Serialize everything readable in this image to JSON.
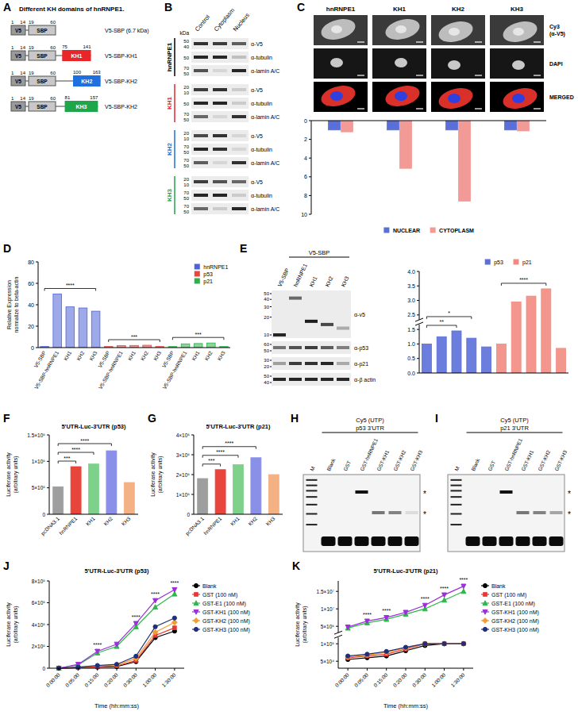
{
  "figure": {
    "A": {
      "letter": "A",
      "title": "Different KH domains of hnRNPE1.",
      "tags": [
        "V5",
        "SBP"
      ],
      "tag_numbers": [
        1,
        14,
        19,
        60
      ],
      "constructs": [
        {
          "label": "V5-SBP (6.7 kDa)"
        },
        {
          "label": "V5-SBP-KH1",
          "domain": "KH1",
          "start": 75,
          "end": 141,
          "color": "#e8262a"
        },
        {
          "label": "V5-SBP-KH2",
          "domain": "KH2",
          "start": 100,
          "end": 163,
          "color": "#1e6fe0"
        },
        {
          "label": "V5-SBP-KH2",
          "domain": "KH3",
          "start": 81,
          "end": 157,
          "color": "#1fa64a"
        }
      ]
    },
    "B": {
      "letter": "B",
      "kda": "kDa",
      "lanes": [
        "Control",
        "Cytoplasm",
        "Nucleus"
      ],
      "groups": [
        {
          "name": "hnRNPE1",
          "color": "#000000",
          "rows": [
            {
              "antibody": "α-V5",
              "markers": [
                50,
                40
              ],
              "bands": [
                0.85,
                0.8,
                0.65
              ]
            },
            {
              "antibody": "α-tubulin",
              "markers": [
                50
              ],
              "bands": [
                0.9,
                0.9,
                0.2
              ]
            },
            {
              "antibody": "α-lamin A/C",
              "markers": [
                70,
                50
              ],
              "bands": [
                0.7,
                0.1,
                0.9
              ]
            }
          ]
        },
        {
          "name": "KH1",
          "color": "#e8262a",
          "rows": [
            {
              "antibody": "α-V5",
              "markers": [
                20,
                10
              ],
              "bands": [
                0.8,
                0.85,
                0.15
              ]
            },
            {
              "antibody": "α-tubulin",
              "markers": [
                50
              ],
              "bands": [
                0.9,
                0.9,
                0.15
              ]
            },
            {
              "antibody": "α-lamin A/C",
              "markers": [
                70,
                50
              ],
              "bands": [
                0.6,
                0.1,
                0.85
              ]
            }
          ]
        },
        {
          "name": "KH2",
          "color": "#1e6fe0",
          "rows": [
            {
              "antibody": "α-V5",
              "markers": [
                20,
                10
              ],
              "bands": [
                0.75,
                0.85,
                0.1
              ]
            },
            {
              "antibody": "α-tubulin",
              "markers": [
                70,
                50
              ],
              "bands": [
                0.9,
                0.85,
                0.1
              ]
            },
            {
              "antibody": "α-lamin A/C",
              "markers": [
                70,
                50
              ],
              "bands": [
                0.65,
                0.1,
                0.85
              ]
            }
          ]
        },
        {
          "name": "KH3",
          "color": "#1fa64a",
          "rows": [
            {
              "antibody": "α-V5",
              "markers": [
                20,
                10
              ],
              "bands": [
                0.8,
                0.7,
                0.6
              ]
            },
            {
              "antibody": "α-tubulin",
              "markers": [
                70,
                50
              ],
              "bands": [
                0.9,
                0.9,
                0.15
              ]
            },
            {
              "antibody": "α-lamin A/C",
              "markers": [
                70,
                50
              ],
              "bands": [
                0.6,
                0.15,
                0.9
              ]
            }
          ]
        }
      ]
    },
    "C": {
      "letter": "C",
      "rows": [
        "Cy3 (α-V5)",
        "DAPI",
        "MERGED"
      ]
    },
    "D": {
      "letter": "D"
    },
    "E": {
      "letter": "E",
      "header": "V5-SBP",
      "lanes": [
        "V5-SBP",
        "hnRNPE1",
        "KH1",
        "KH2",
        "KH3"
      ],
      "rows": [
        {
          "antibody": "α-v5",
          "markers": [
            50,
            40,
            30,
            20,
            10
          ],
          "bands": [
            0.9,
            0.6,
            0.95,
            0.75,
            0.3
          ],
          "band_kda": [
            10,
            42,
            17,
            15,
            13
          ]
        },
        {
          "antibody": "α-p53",
          "markers": [
            60,
            50
          ],
          "bands": [
            0.55,
            0.7,
            0.8,
            0.65,
            0.5
          ]
        },
        {
          "antibody": "α-p21",
          "markers": [
            30,
            20
          ],
          "bands": [
            0.35,
            0.8,
            0.85,
            0.9,
            0.3
          ]
        },
        {
          "antibody": "α-β actin",
          "markers": [
            50,
            40
          ],
          "bands": [
            0.9,
            0.9,
            0.9,
            0.9,
            0.9
          ]
        }
      ]
    },
    "F": {
      "letter": "F"
    },
    "G": {
      "letter": "G"
    },
    "H": {
      "letter": "H",
      "label": "Cy5 (UTP)",
      "probe": "p53 3'UTR",
      "lanes": [
        "M",
        "Blank",
        "GST",
        "GST-hnRNPE1",
        "GST-KH1",
        "GST-KH2",
        "GST-KH3"
      ],
      "marks": [
        "*",
        "*"
      ],
      "upper_band": [
        0,
        0,
        0,
        1,
        0,
        0,
        0
      ],
      "lower_band": [
        0,
        0,
        0,
        0,
        0.55,
        0.5,
        0.1
      ],
      "free_probe": [
        0,
        1,
        1,
        1,
        1,
        1,
        1
      ]
    },
    "I": {
      "letter": "I",
      "label": "Cy5 (UTP)",
      "probe": "p21 3'UTR",
      "lanes": [
        "M",
        "Blank",
        "GST",
        "GST-hnRNPE1",
        "GST-KH1",
        "GST-KH2",
        "GST-KH3"
      ],
      "marks": [
        "*",
        "*"
      ],
      "upper_band": [
        0,
        0,
        0,
        1,
        0,
        0,
        0
      ],
      "lower_band": [
        0,
        0,
        0,
        0,
        0.55,
        0.5,
        0.35
      ],
      "free_probe": [
        0,
        1,
        1,
        1,
        1,
        1,
        1
      ]
    },
    "J": {
      "letter": "J"
    },
    "K": {
      "letter": "K"
    }
  },
  "chart_data": [
    {
      "type": "bar",
      "categories": [
        "hnRNPE1",
        "KH1",
        "KH2",
        "KH3"
      ],
      "series": [
        {
          "name": "NUCLEAR",
          "color": "#5b6fd9",
          "values": [
            1,
            1,
            1,
            1
          ]
        },
        {
          "name": "CYTOPLASM",
          "color": "#f29b96",
          "values": [
            1.2,
            5.1,
            8.6,
            1.1
          ]
        }
      ],
      "ylim": [
        10,
        0
      ],
      "yticks": [
        0,
        2,
        4,
        6,
        8,
        10
      ],
      "legend": "bottom"
    },
    {
      "type": "bar",
      "ylabel": "Relative Expression normalize to beta-actin",
      "categories": [
        "V5-SBP",
        "V5-SBP-hnRNPE1",
        "KH1",
        "KH2",
        "KH3",
        "V5-SBP",
        "V5-SBP-hnRNPE1",
        "KH1",
        "KH2",
        "KH3",
        "V5-SBP",
        "V5-SBP-hnRNPE1",
        "KH1",
        "KH2",
        "KH3"
      ],
      "series": [
        {
          "name": "hnRNPE1",
          "color": "#4f63d8",
          "values": [
            1,
            50,
            38,
            37,
            34,
            null,
            null,
            null,
            null,
            null,
            null,
            null,
            null,
            null,
            null
          ]
        },
        {
          "name": "p53",
          "color": "#e8453c",
          "values": [
            null,
            null,
            null,
            null,
            null,
            1,
            1.8,
            2.0,
            2.2,
            1.0,
            null,
            null,
            null,
            null,
            null
          ]
        },
        {
          "name": "p21",
          "color": "#2bb04a",
          "values": [
            null,
            null,
            null,
            null,
            null,
            null,
            null,
            null,
            null,
            null,
            1,
            3.5,
            3.8,
            4.3,
            1.0
          ]
        }
      ],
      "ylim": [
        0,
        80
      ],
      "yticks": [
        0,
        20,
        40,
        60,
        80
      ],
      "legend": "top-right",
      "annotations": [
        {
          "from": 0,
          "to": 4,
          "text": "****"
        },
        {
          "from": 5,
          "to": 9,
          "text": "***"
        },
        {
          "from": 10,
          "to": 14,
          "text": "***"
        }
      ]
    },
    {
      "type": "bar",
      "categories": [
        null,
        null,
        null,
        null,
        null,
        null,
        null,
        null,
        null,
        null
      ],
      "series": [
        {
          "name": "p53",
          "color": "#5b6fd9",
          "values": [
            1.0,
            1.25,
            1.45,
            1.2,
            0.9,
            null,
            null,
            null,
            null,
            null
          ]
        },
        {
          "name": "p21",
          "color": "#f28b82",
          "values": [
            null,
            null,
            null,
            null,
            null,
            1.0,
            2.95,
            3.15,
            3.4,
            0.85
          ]
        }
      ],
      "ylim": [
        0,
        4
      ],
      "yticks": [
        {
          "value": 0,
          "label": "0.0"
        },
        {
          "value": 0.5,
          "label": "0.5"
        },
        {
          "value": 1,
          "label": "1.0"
        },
        {
          "value": 1.5,
          "label": "1.5"
        },
        {
          "value": 2.5,
          "label": "2.5"
        },
        {
          "value": 3,
          "label": "3.0"
        },
        {
          "value": 3.5,
          "label": "3.5"
        },
        {
          "value": 4,
          "label": "4.0"
        }
      ],
      "legend": "top",
      "annotations": [
        {
          "from": 0,
          "to": 2,
          "text": "**"
        },
        {
          "from": 0,
          "to": 3,
          "text": "*"
        },
        {
          "from": 5,
          "to": 8,
          "text": "****"
        }
      ]
    },
    {
      "type": "bar",
      "title": "5'UTR-Luc-3'UTR (p53)",
      "ylabel": "Luciferase activity (arbitrary units)",
      "categories": [
        "pcDNA3.1",
        "hnRNPE1",
        "KH1",
        "KH2",
        "KH3"
      ],
      "values": [
        520000,
        900000,
        950000,
        1200000,
        600000
      ],
      "colors": [
        "#9e9e9e",
        "#e8453c",
        "#7ed18a",
        "#8a8fe8",
        "#f4b183"
      ],
      "ylim": [
        0,
        1500000
      ],
      "yticks": [
        0,
        {
          "value": 500000,
          "label": "5×10⁵"
        },
        {
          "value": 1000000,
          "label": "1×10⁶"
        },
        {
          "value": 1500000,
          "label": "1.5×10⁶"
        }
      ],
      "annotations": [
        {
          "from": 0,
          "to": 1,
          "text": "***"
        },
        {
          "from": 0,
          "to": 2,
          "text": "****"
        },
        {
          "from": 0,
          "to": 3,
          "text": "****"
        }
      ]
    },
    {
      "type": "bar",
      "title": "5'UTR-Luc-3'UTR (p21)",
      "ylabel": "Luciferase activity (arbitrary units)",
      "categories": [
        "pcDNA3.1",
        "hnRNPE1",
        "KH1",
        "KH2",
        "KH3"
      ],
      "values": [
        1800000,
        2250000,
        2500000,
        2850000,
        2000000
      ],
      "colors": [
        "#9e9e9e",
        "#e8453c",
        "#7ed18a",
        "#8a8fe8",
        "#f4b183"
      ],
      "ylim": [
        0,
        4000000
      ],
      "yticks": [
        0,
        {
          "value": 1000000,
          "label": "1×10⁶"
        },
        {
          "value": 2000000,
          "label": "2×10⁶"
        },
        {
          "value": 3000000,
          "label": "3×10⁶"
        },
        {
          "value": 4000000,
          "label": "4×10⁶"
        }
      ],
      "annotations": [
        {
          "from": 0,
          "to": 1,
          "text": "***"
        },
        {
          "from": 0,
          "to": 2,
          "text": "****"
        },
        {
          "from": 0,
          "to": 3,
          "text": "****"
        }
      ]
    },
    {
      "type": "line",
      "title": "5'UTR-Luc-3'UTR (p53)",
      "ylabel": "Luciferase activity (arbitrary units)",
      "xlabel": "Time (hh:mm:ss)",
      "categories": [
        "0:00:00",
        "0:05:00",
        "0:15:00",
        "0:20:00",
        "0:30:00",
        "1:00:00",
        "1:30:00"
      ],
      "series": [
        {
          "name": "Blank",
          "color": "#000000",
          "marker": "circle",
          "values": [
            0,
            5000,
            10000,
            15000,
            60000,
            280000,
            340000
          ]
        },
        {
          "name": "GST (100 nM)",
          "color": "#e53935",
          "marker": "square",
          "values": [
            0,
            5000,
            12000,
            20000,
            70000,
            300000,
            370000
          ]
        },
        {
          "name": "GST-E1 (100 nM)",
          "color": "#2db84b",
          "marker": "triangle",
          "values": [
            0,
            30000,
            140000,
            200000,
            380000,
            560000,
            680000
          ]
        },
        {
          "name": "GST-KH1 (100 nM)",
          "color": "#9b30d9",
          "marker": "triangle-down",
          "values": [
            0,
            35000,
            155000,
            220000,
            410000,
            620000,
            720000
          ]
        },
        {
          "name": "GST-KH2 (100 nM)",
          "color": "#f39c34",
          "marker": "diamond",
          "values": [
            0,
            8000,
            20000,
            30000,
            90000,
            330000,
            420000
          ]
        },
        {
          "name": "GST-KH3 (100 nM)",
          "color": "#1f2f7a",
          "marker": "circle",
          "values": [
            0,
            10000,
            25000,
            35000,
            110000,
            380000,
            460000
          ]
        }
      ],
      "ylim": [
        0,
        800000
      ],
      "yticks": [
        0,
        {
          "value": 200000,
          "label": "2×10⁵"
        },
        {
          "value": 400000,
          "label": "4×10⁵"
        },
        {
          "value": 600000,
          "label": "6×10⁵"
        },
        {
          "value": 800000,
          "label": "8×10⁵"
        }
      ],
      "legend": "right",
      "annotations": [
        {
          "category": "0:15:00",
          "text": "****"
        },
        {
          "category": "0:30:00",
          "text": "****"
        },
        {
          "category": "1:00:00",
          "text": "****"
        },
        {
          "category": "1:30:00",
          "text": "****"
        }
      ]
    },
    {
      "type": "line",
      "title": "5'UTR-Luc-3'UTR (p21)",
      "ylabel": "Luciferase activity (arbitrary units)",
      "xlabel": "Time (hh:mm:ss)",
      "categories": [
        "0:00:00",
        "0:05:00",
        "0:15:00",
        "0:20:00",
        "0:30:00",
        "1:00:00",
        "1:30:00"
      ],
      "series": [
        {
          "name": "Blank",
          "color": "#000000",
          "marker": "circle",
          "values": [
            55000,
            60000,
            65000,
            80000,
            95000,
            105000,
            115000
          ]
        },
        {
          "name": "GST (100 nM)",
          "color": "#e53935",
          "marker": "square",
          "values": [
            60000,
            65000,
            70000,
            85000,
            100000,
            110000,
            120000
          ]
        },
        {
          "name": "GST-E1 (100 nM)",
          "color": "#2db84b",
          "marker": "triangle",
          "values": [
            4500000,
            6000000,
            7000000,
            8500000,
            10000000,
            12500000,
            15000000
          ]
        },
        {
          "name": "GST-KH1 (100 nM)",
          "color": "#9b30d9",
          "marker": "triangle-down",
          "values": [
            4800000,
            6500000,
            7500000,
            9000000,
            11000000,
            14000000,
            16500000
          ]
        },
        {
          "name": "GST-KH2 (100 nM)",
          "color": "#f39c34",
          "marker": "diamond",
          "values": [
            62000,
            68000,
            75000,
            88000,
            102000,
            112000,
            122000
          ]
        },
        {
          "name": "GST-KH3 (100 nM)",
          "color": "#1f2f7a",
          "marker": "circle",
          "values": [
            65000,
            70000,
            78000,
            90000,
            105000,
            115000,
            125000
          ]
        }
      ],
      "ylim": [
        30000,
        18000000
      ],
      "yticks": [
        {
          "value": 50000,
          "label": "5×10⁴"
        },
        {
          "value": 100000,
          "label": "1×10⁵"
        },
        {
          "value": 5000000,
          "label": "5×10⁶"
        },
        {
          "value": 10000000,
          "label": "1×10⁷"
        },
        {
          "value": 15000000,
          "label": "1.5×10⁷"
        }
      ],
      "legend": "right",
      "annotations": [
        {
          "category": "0:05:00",
          "text": "****"
        },
        {
          "category": "0:15:00",
          "text": "****"
        },
        {
          "category": "0:30:00",
          "text": "****"
        },
        {
          "category": "1:00:00",
          "text": "****"
        },
        {
          "category": "1:30:00",
          "text": "****"
        }
      ]
    }
  ]
}
